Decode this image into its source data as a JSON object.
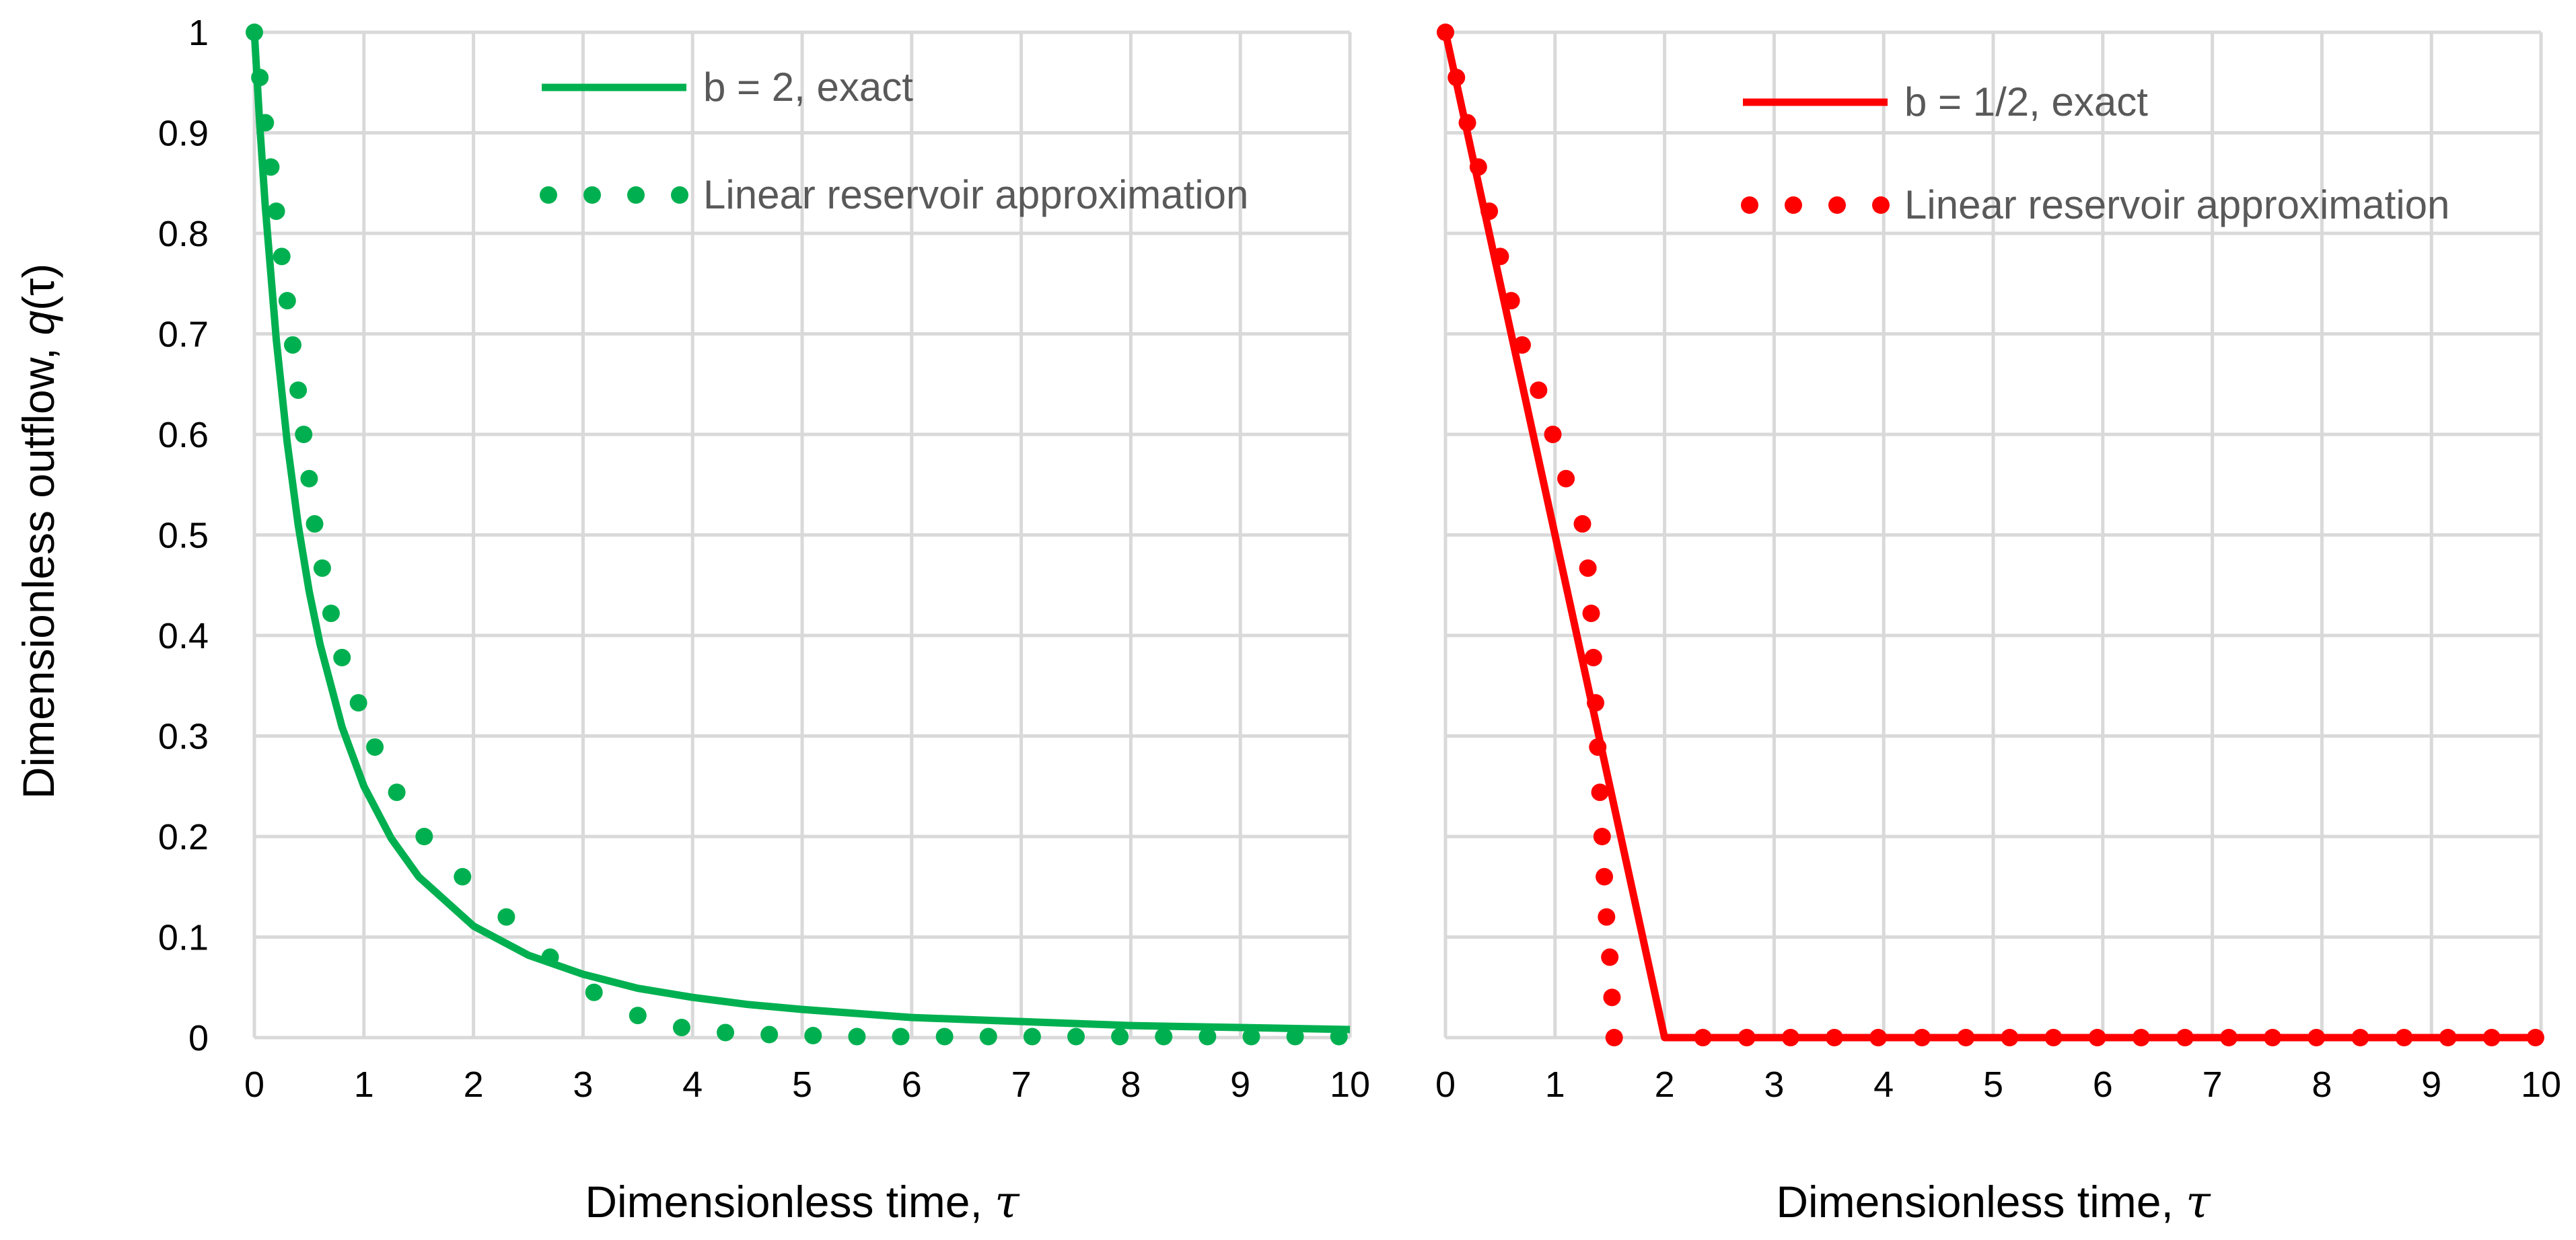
{
  "ylabel_text": "Dimensionless outflow, ",
  "ylabel_var": "q",
  "ylabel_arg": "(τ)",
  "chart_data": [
    {
      "type": "line",
      "xlabel": "Dimensionless time, ",
      "xlabel_var": "τ",
      "xlim": [
        0,
        10
      ],
      "ylim": [
        0,
        1
      ],
      "x_ticks": [
        "0",
        "1",
        "2",
        "3",
        "4",
        "5",
        "6",
        "7",
        "8",
        "9",
        "10"
      ],
      "y_ticks": [
        "0",
        "0.1",
        "0.2",
        "0.3",
        "0.4",
        "0.5",
        "0.6",
        "0.7",
        "0.8",
        "0.9",
        "1"
      ],
      "color": "#00b050",
      "grid": true,
      "legend_position": "top-right",
      "series": [
        {
          "name": "b = 2, exact",
          "style": "solid",
          "x": [
            0,
            0.05,
            0.1,
            0.2,
            0.3,
            0.4,
            0.5,
            0.6,
            0.8,
            1,
            1.25,
            1.5,
            2,
            2.5,
            3,
            3.5,
            4,
            4.5,
            5,
            5.5,
            6,
            6.5,
            7,
            7.5,
            8,
            8.5,
            9,
            9.5,
            10
          ],
          "y": [
            1,
            0.907,
            0.826,
            0.694,
            0.592,
            0.51,
            0.444,
            0.391,
            0.309,
            0.25,
            0.198,
            0.16,
            0.111,
            0.082,
            0.063,
            0.049,
            0.04,
            0.033,
            0.028,
            0.024,
            0.02,
            0.018,
            0.016,
            0.014,
            0.012,
            0.011,
            0.01,
            0.009,
            0.008
          ]
        },
        {
          "name": "Linear reservoir approximation",
          "style": "dotted",
          "x": [
            0,
            0.05,
            0.1,
            0.15,
            0.2,
            0.25,
            0.3,
            0.35,
            0.4,
            0.45,
            0.5,
            0.55,
            0.62,
            0.7,
            0.8,
            0.95,
            1.1,
            1.3,
            1.55,
            1.9,
            2.3,
            2.7,
            3.1,
            3.5,
            3.9,
            4.3,
            4.7,
            5.1,
            5.5,
            5.9,
            6.3,
            6.7,
            7.1,
            7.5,
            7.9,
            8.3,
            8.7,
            9.1,
            9.5,
            9.9
          ],
          "y": [
            1,
            0.955,
            0.91,
            0.866,
            0.822,
            0.777,
            0.733,
            0.689,
            0.644,
            0.6,
            0.556,
            0.511,
            0.467,
            0.422,
            0.378,
            0.333,
            0.289,
            0.244,
            0.2,
            0.16,
            0.12,
            0.08,
            0.045,
            0.022,
            0.01,
            0.005,
            0.003,
            0.002,
            0.001,
            0.001,
            0.001,
            0.001,
            0.001,
            0.001,
            0.001,
            0.001,
            0.001,
            0.001,
            0.001,
            0.001
          ]
        }
      ]
    },
    {
      "type": "line",
      "xlabel": "Dimensionless time, ",
      "xlabel_var": "τ",
      "xlim": [
        0,
        10
      ],
      "ylim": [
        0,
        1
      ],
      "x_ticks": [
        "0",
        "1",
        "2",
        "3",
        "4",
        "5",
        "6",
        "7",
        "8",
        "9",
        "10"
      ],
      "color": "#ff0000",
      "grid": true,
      "legend_position": "top-right",
      "series": [
        {
          "name": "b = 1/2, exact",
          "style": "solid",
          "x": [
            0,
            2,
            10
          ],
          "y": [
            1,
            0,
            0
          ]
        },
        {
          "name": "Linear reservoir approximation",
          "style": "dotted",
          "x": [
            0,
            0.1,
            0.2,
            0.3,
            0.4,
            0.5,
            0.6,
            0.7,
            0.85,
            0.98,
            1.1,
            1.25,
            1.3,
            1.33,
            1.35,
            1.37,
            1.39,
            1.41,
            1.43,
            1.45,
            1.47,
            1.5,
            1.52,
            1.54,
            2.35,
            2.75,
            3.15,
            3.55,
            3.95,
            4.35,
            4.75,
            5.15,
            5.55,
            5.95,
            6.35,
            6.75,
            7.15,
            7.55,
            7.95,
            8.35,
            8.75,
            9.15,
            9.55,
            9.95
          ],
          "y": [
            1,
            0.955,
            0.91,
            0.866,
            0.822,
            0.777,
            0.733,
            0.689,
            0.644,
            0.6,
            0.556,
            0.511,
            0.467,
            0.422,
            0.378,
            0.333,
            0.289,
            0.244,
            0.2,
            0.16,
            0.12,
            0.08,
            0.04,
            0,
            0,
            0,
            0,
            0,
            0,
            0,
            0,
            0,
            0,
            0,
            0,
            0,
            0,
            0,
            0,
            0,
            0,
            0,
            0,
            0
          ]
        }
      ]
    }
  ]
}
